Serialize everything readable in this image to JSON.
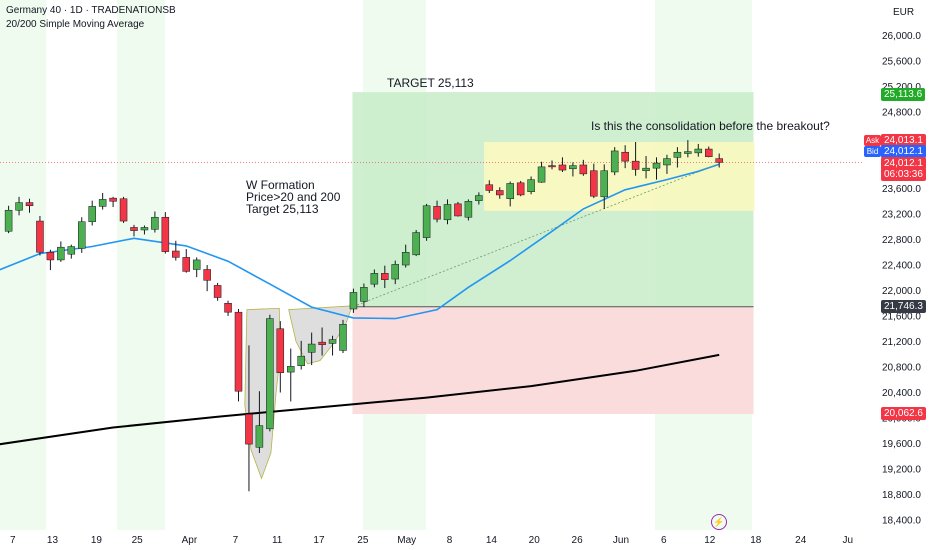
{
  "header": {
    "title": "Germany 40 · 1D · TRADENATIONSB",
    "indicator": "20/200 Simple Moving Average"
  },
  "currency": "EUR",
  "annotations": {
    "w_formation": [
      "W Formation",
      "Price>20 and 200",
      "Target 25,113"
    ],
    "target": "TARGET 25,113",
    "question": "Is this the consolidation before the breakout?"
  },
  "price_tags": {
    "target": "25,113.6",
    "ask_label": "Ask",
    "ask": "24,013.1",
    "bid_label": "Bid",
    "bid": "24,012.1",
    "last": "24,012.1",
    "countdown": "06:03:36",
    "entry": "21,746.3",
    "stop": "20,062.6"
  },
  "colors": {
    "up": "#26a69a",
    "candle_up": "#4caf50",
    "candle_down": "#f23645",
    "ma20": "#2196f3",
    "ma200": "#000000",
    "target_zone": "#c8ecc8",
    "stop_zone": "#fbdcdc",
    "consolidation_box": "#fbf8c0",
    "w_shape": "#d3d3d3",
    "session_band": "#f0fbf0",
    "ask_bid_ask": "#f23645",
    "ask_bid_bid": "#2962ff",
    "entry_tag": "#363a45",
    "target_tag": "#22ab28",
    "stop_tag": "#f23645"
  },
  "chart_data": {
    "type": "candlestick",
    "title": "Germany 40 · 1D · TRADENATIONSB",
    "y_axis": {
      "ticks": [
        "26,000.0",
        "25,600.0",
        "25,200.0",
        "24,800.0",
        "24,400.0",
        "24,000.0",
        "23,600.0",
        "23,200.0",
        "22,800.0",
        "22,400.0",
        "22,000.0",
        "21,600.0",
        "21,200.0",
        "20,800.0",
        "20,400.0",
        "20,000.0",
        "19,600.0",
        "19,200.0",
        "18,800.0",
        "18,400.0"
      ],
      "tick_values": [
        26000,
        25600,
        25200,
        24800,
        24400,
        24000,
        23600,
        23200,
        22800,
        22400,
        22000,
        21600,
        21200,
        20800,
        20400,
        20000,
        19600,
        19200,
        18800,
        18400
      ],
      "range": [
        18250,
        26350
      ]
    },
    "x_axis": {
      "labels": [
        "7",
        "13",
        "19",
        "25",
        "Apr",
        "7",
        "11",
        "17",
        "25",
        "May",
        "8",
        "14",
        "20",
        "26",
        "Jun",
        "6",
        "12",
        "18",
        "24",
        "Ju"
      ],
      "label_positions": [
        0.4,
        4.2,
        8.4,
        12.3,
        17.3,
        21.7,
        25.7,
        29.7,
        33.9,
        38.1,
        42.2,
        46.2,
        50.3,
        54.4,
        58.6,
        62.7,
        67.1,
        71.5,
        75.8,
        80.3
      ]
    },
    "candles": [
      {
        "o": 22930,
        "h": 23330,
        "l": 22900,
        "c": 23260
      },
      {
        "o": 23260,
        "h": 23470,
        "l": 23180,
        "c": 23380
      },
      {
        "o": 23380,
        "h": 23440,
        "l": 23220,
        "c": 23330
      },
      {
        "o": 23090,
        "h": 23170,
        "l": 22550,
        "c": 22600
      },
      {
        "o": 22600,
        "h": 22640,
        "l": 22320,
        "c": 22480
      },
      {
        "o": 22480,
        "h": 22770,
        "l": 22450,
        "c": 22680
      },
      {
        "o": 22570,
        "h": 22720,
        "l": 22500,
        "c": 22690
      },
      {
        "o": 22660,
        "h": 23150,
        "l": 22590,
        "c": 23080
      },
      {
        "o": 23080,
        "h": 23410,
        "l": 23020,
        "c": 23320
      },
      {
        "o": 23320,
        "h": 23530,
        "l": 23270,
        "c": 23430
      },
      {
        "o": 23450,
        "h": 23470,
        "l": 23310,
        "c": 23400
      },
      {
        "o": 23440,
        "h": 23470,
        "l": 23060,
        "c": 23090
      },
      {
        "o": 22990,
        "h": 23030,
        "l": 22850,
        "c": 22940
      },
      {
        "o": 22950,
        "h": 23020,
        "l": 22880,
        "c": 22990
      },
      {
        "o": 22960,
        "h": 23240,
        "l": 22910,
        "c": 23150
      },
      {
        "o": 23150,
        "h": 23230,
        "l": 22580,
        "c": 22610
      },
      {
        "o": 22620,
        "h": 22780,
        "l": 22470,
        "c": 22520
      },
      {
        "o": 22520,
        "h": 22650,
        "l": 22280,
        "c": 22300
      },
      {
        "o": 22330,
        "h": 22520,
        "l": 22210,
        "c": 22480
      },
      {
        "o": 22330,
        "h": 22400,
        "l": 21990,
        "c": 22160
      },
      {
        "o": 22080,
        "h": 22120,
        "l": 21840,
        "c": 21890
      },
      {
        "o": 21800,
        "h": 21840,
        "l": 21600,
        "c": 21660
      },
      {
        "o": 21660,
        "h": 21710,
        "l": 20260,
        "c": 20420
      },
      {
        "o": 20060,
        "h": 21140,
        "l": 18850,
        "c": 19590
      },
      {
        "o": 19540,
        "h": 20420,
        "l": 19450,
        "c": 19880
      },
      {
        "o": 19830,
        "h": 21620,
        "l": 19790,
        "c": 21560
      },
      {
        "o": 21400,
        "h": 21520,
        "l": 20400,
        "c": 20710
      },
      {
        "o": 20720,
        "h": 21090,
        "l": 20260,
        "c": 20810
      },
      {
        "o": 20820,
        "h": 21210,
        "l": 20760,
        "c": 20970
      },
      {
        "o": 21030,
        "h": 21340,
        "l": 20830,
        "c": 21160
      },
      {
        "o": 21190,
        "h": 21420,
        "l": 20980,
        "c": 21150
      },
      {
        "o": 21170,
        "h": 21290,
        "l": 20980,
        "c": 21230
      },
      {
        "o": 21060,
        "h": 21540,
        "l": 21020,
        "c": 21470
      },
      {
        "o": 21710,
        "h": 22030,
        "l": 21650,
        "c": 21970
      },
      {
        "o": 21830,
        "h": 22110,
        "l": 21740,
        "c": 22050
      },
      {
        "o": 22100,
        "h": 22330,
        "l": 22050,
        "c": 22270
      },
      {
        "o": 22270,
        "h": 22390,
        "l": 22040,
        "c": 22170
      },
      {
        "o": 22180,
        "h": 22470,
        "l": 22100,
        "c": 22410
      },
      {
        "o": 22400,
        "h": 22720,
        "l": 22360,
        "c": 22600
      },
      {
        "o": 22560,
        "h": 22950,
        "l": 22540,
        "c": 22910
      },
      {
        "o": 22830,
        "h": 23360,
        "l": 22780,
        "c": 23330
      },
      {
        "o": 23320,
        "h": 23410,
        "l": 23070,
        "c": 23120
      },
      {
        "o": 23110,
        "h": 23430,
        "l": 23040,
        "c": 23350
      },
      {
        "o": 23360,
        "h": 23390,
        "l": 23160,
        "c": 23170
      },
      {
        "o": 23150,
        "h": 23430,
        "l": 23100,
        "c": 23400
      },
      {
        "o": 23410,
        "h": 23540,
        "l": 23350,
        "c": 23490
      },
      {
        "o": 23660,
        "h": 23730,
        "l": 23530,
        "c": 23570
      },
      {
        "o": 23570,
        "h": 23620,
        "l": 23440,
        "c": 23500
      },
      {
        "o": 23440,
        "h": 23710,
        "l": 23320,
        "c": 23680
      },
      {
        "o": 23690,
        "h": 23720,
        "l": 23480,
        "c": 23500
      },
      {
        "o": 23550,
        "h": 23790,
        "l": 23510,
        "c": 23740
      },
      {
        "o": 23700,
        "h": 24020,
        "l": 23690,
        "c": 23940
      },
      {
        "o": 23960,
        "h": 24040,
        "l": 23900,
        "c": 23940
      },
      {
        "o": 23970,
        "h": 24090,
        "l": 23860,
        "c": 23890
      },
      {
        "o": 23910,
        "h": 24010,
        "l": 23790,
        "c": 23960
      },
      {
        "o": 23970,
        "h": 24050,
        "l": 23800,
        "c": 23830
      },
      {
        "o": 23880,
        "h": 23990,
        "l": 23450,
        "c": 23480
      },
      {
        "o": 23470,
        "h": 23980,
        "l": 23280,
        "c": 23880
      },
      {
        "o": 23860,
        "h": 24250,
        "l": 23810,
        "c": 24190
      },
      {
        "o": 24170,
        "h": 24280,
        "l": 23920,
        "c": 24030
      },
      {
        "o": 24030,
        "h": 24330,
        "l": 23800,
        "c": 23900
      },
      {
        "o": 23880,
        "h": 24110,
        "l": 23760,
        "c": 23920
      },
      {
        "o": 23920,
        "h": 24090,
        "l": 23740,
        "c": 24000
      },
      {
        "o": 23970,
        "h": 24130,
        "l": 23830,
        "c": 24070
      },
      {
        "o": 24090,
        "h": 24250,
        "l": 23930,
        "c": 24170
      },
      {
        "o": 24150,
        "h": 24360,
        "l": 24090,
        "c": 24180
      },
      {
        "o": 24160,
        "h": 24300,
        "l": 24100,
        "c": 24220
      },
      {
        "o": 24220,
        "h": 24260,
        "l": 24090,
        "c": 24100
      },
      {
        "o": 24070,
        "h": 24150,
        "l": 23930,
        "c": 24010
      }
    ],
    "ma20": [
      {
        "x": -2,
        "y": 22250
      },
      {
        "x": 3,
        "y": 22580
      },
      {
        "x": 8,
        "y": 22690
      },
      {
        "x": 12,
        "y": 22820
      },
      {
        "x": 17,
        "y": 22700
      },
      {
        "x": 21,
        "y": 22460
      },
      {
        "x": 25,
        "y": 22100
      },
      {
        "x": 29,
        "y": 21740
      },
      {
        "x": 33,
        "y": 21570
      },
      {
        "x": 37,
        "y": 21560
      },
      {
        "x": 41,
        "y": 21700
      },
      {
        "x": 44,
        "y": 22050
      },
      {
        "x": 48,
        "y": 22470
      },
      {
        "x": 52,
        "y": 22930
      },
      {
        "x": 55,
        "y": 23280
      },
      {
        "x": 59,
        "y": 23580
      },
      {
        "x": 63,
        "y": 23740
      },
      {
        "x": 66,
        "y": 23870
      },
      {
        "x": 68,
        "y": 23980
      }
    ],
    "ma200": [
      {
        "x": -2,
        "y": 19560
      },
      {
        "x": 10,
        "y": 19850
      },
      {
        "x": 20,
        "y": 20020
      },
      {
        "x": 30,
        "y": 20170
      },
      {
        "x": 40,
        "y": 20320
      },
      {
        "x": 50,
        "y": 20500
      },
      {
        "x": 60,
        "y": 20740
      },
      {
        "x": 68,
        "y": 20990
      }
    ],
    "trend_line": {
      "x1": 33,
      "y1": 21750,
      "x2": 68,
      "y2": 23990
    },
    "zones": {
      "target": {
        "x1": 33,
        "x2": 71,
        "top": 25113.6,
        "bottom": 21746.3
      },
      "stop": {
        "x1": 33,
        "x2": 71,
        "top": 21746.3,
        "bottom": 20062.6
      },
      "consolidation": {
        "x1": 45.5,
        "x2": 71,
        "top": 24330,
        "bottom": 23250
      }
    },
    "levels": {
      "entry": 21746.3,
      "target": 25113.6,
      "stop": 20062.6,
      "current": 24012.1
    }
  }
}
